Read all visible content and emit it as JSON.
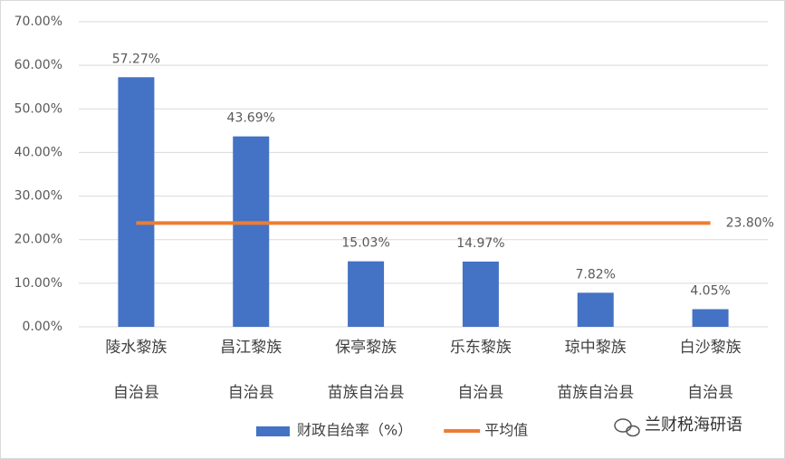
{
  "chart_data": {
    "type": "bar",
    "categories": [
      [
        "陵水黎族",
        "自治县"
      ],
      [
        "昌江黎族",
        "自治县"
      ],
      [
        "保亭黎族",
        "苗族自治县"
      ],
      [
        "乐东黎族",
        "自治县"
      ],
      [
        "琼中黎族",
        "苗族自治县"
      ],
      [
        "白沙黎族",
        "自治县"
      ]
    ],
    "series": [
      {
        "name": "财政自给率（%）",
        "color": "#4472c4",
        "type": "bar",
        "values": [
          57.27,
          43.69,
          15.03,
          14.97,
          7.82,
          4.05
        ],
        "value_labels": [
          "57.27%",
          "43.69%",
          "15.03%",
          "14.97%",
          "7.82%",
          "4.05%"
        ]
      },
      {
        "name": "平均值",
        "color": "#ed7d31",
        "type": "line",
        "values": [
          23.8,
          23.8,
          23.8,
          23.8,
          23.8,
          23.8
        ],
        "value_labels": [
          null,
          null,
          null,
          null,
          null,
          "23.80%"
        ]
      }
    ],
    "ylim": [
      0,
      70
    ],
    "yticks": [
      {
        "value": 0,
        "label": "0.00%"
      },
      {
        "value": 10,
        "label": "10.00%"
      },
      {
        "value": 20,
        "label": "20.00%"
      },
      {
        "value": 30,
        "label": "30.00%"
      },
      {
        "value": 40,
        "label": "40.00%"
      },
      {
        "value": 50,
        "label": "50.00%"
      },
      {
        "value": 60,
        "label": "60.00%"
      },
      {
        "value": 70,
        "label": "70.00%"
      }
    ],
    "grid": true,
    "watermark": "兰财税海研语"
  }
}
